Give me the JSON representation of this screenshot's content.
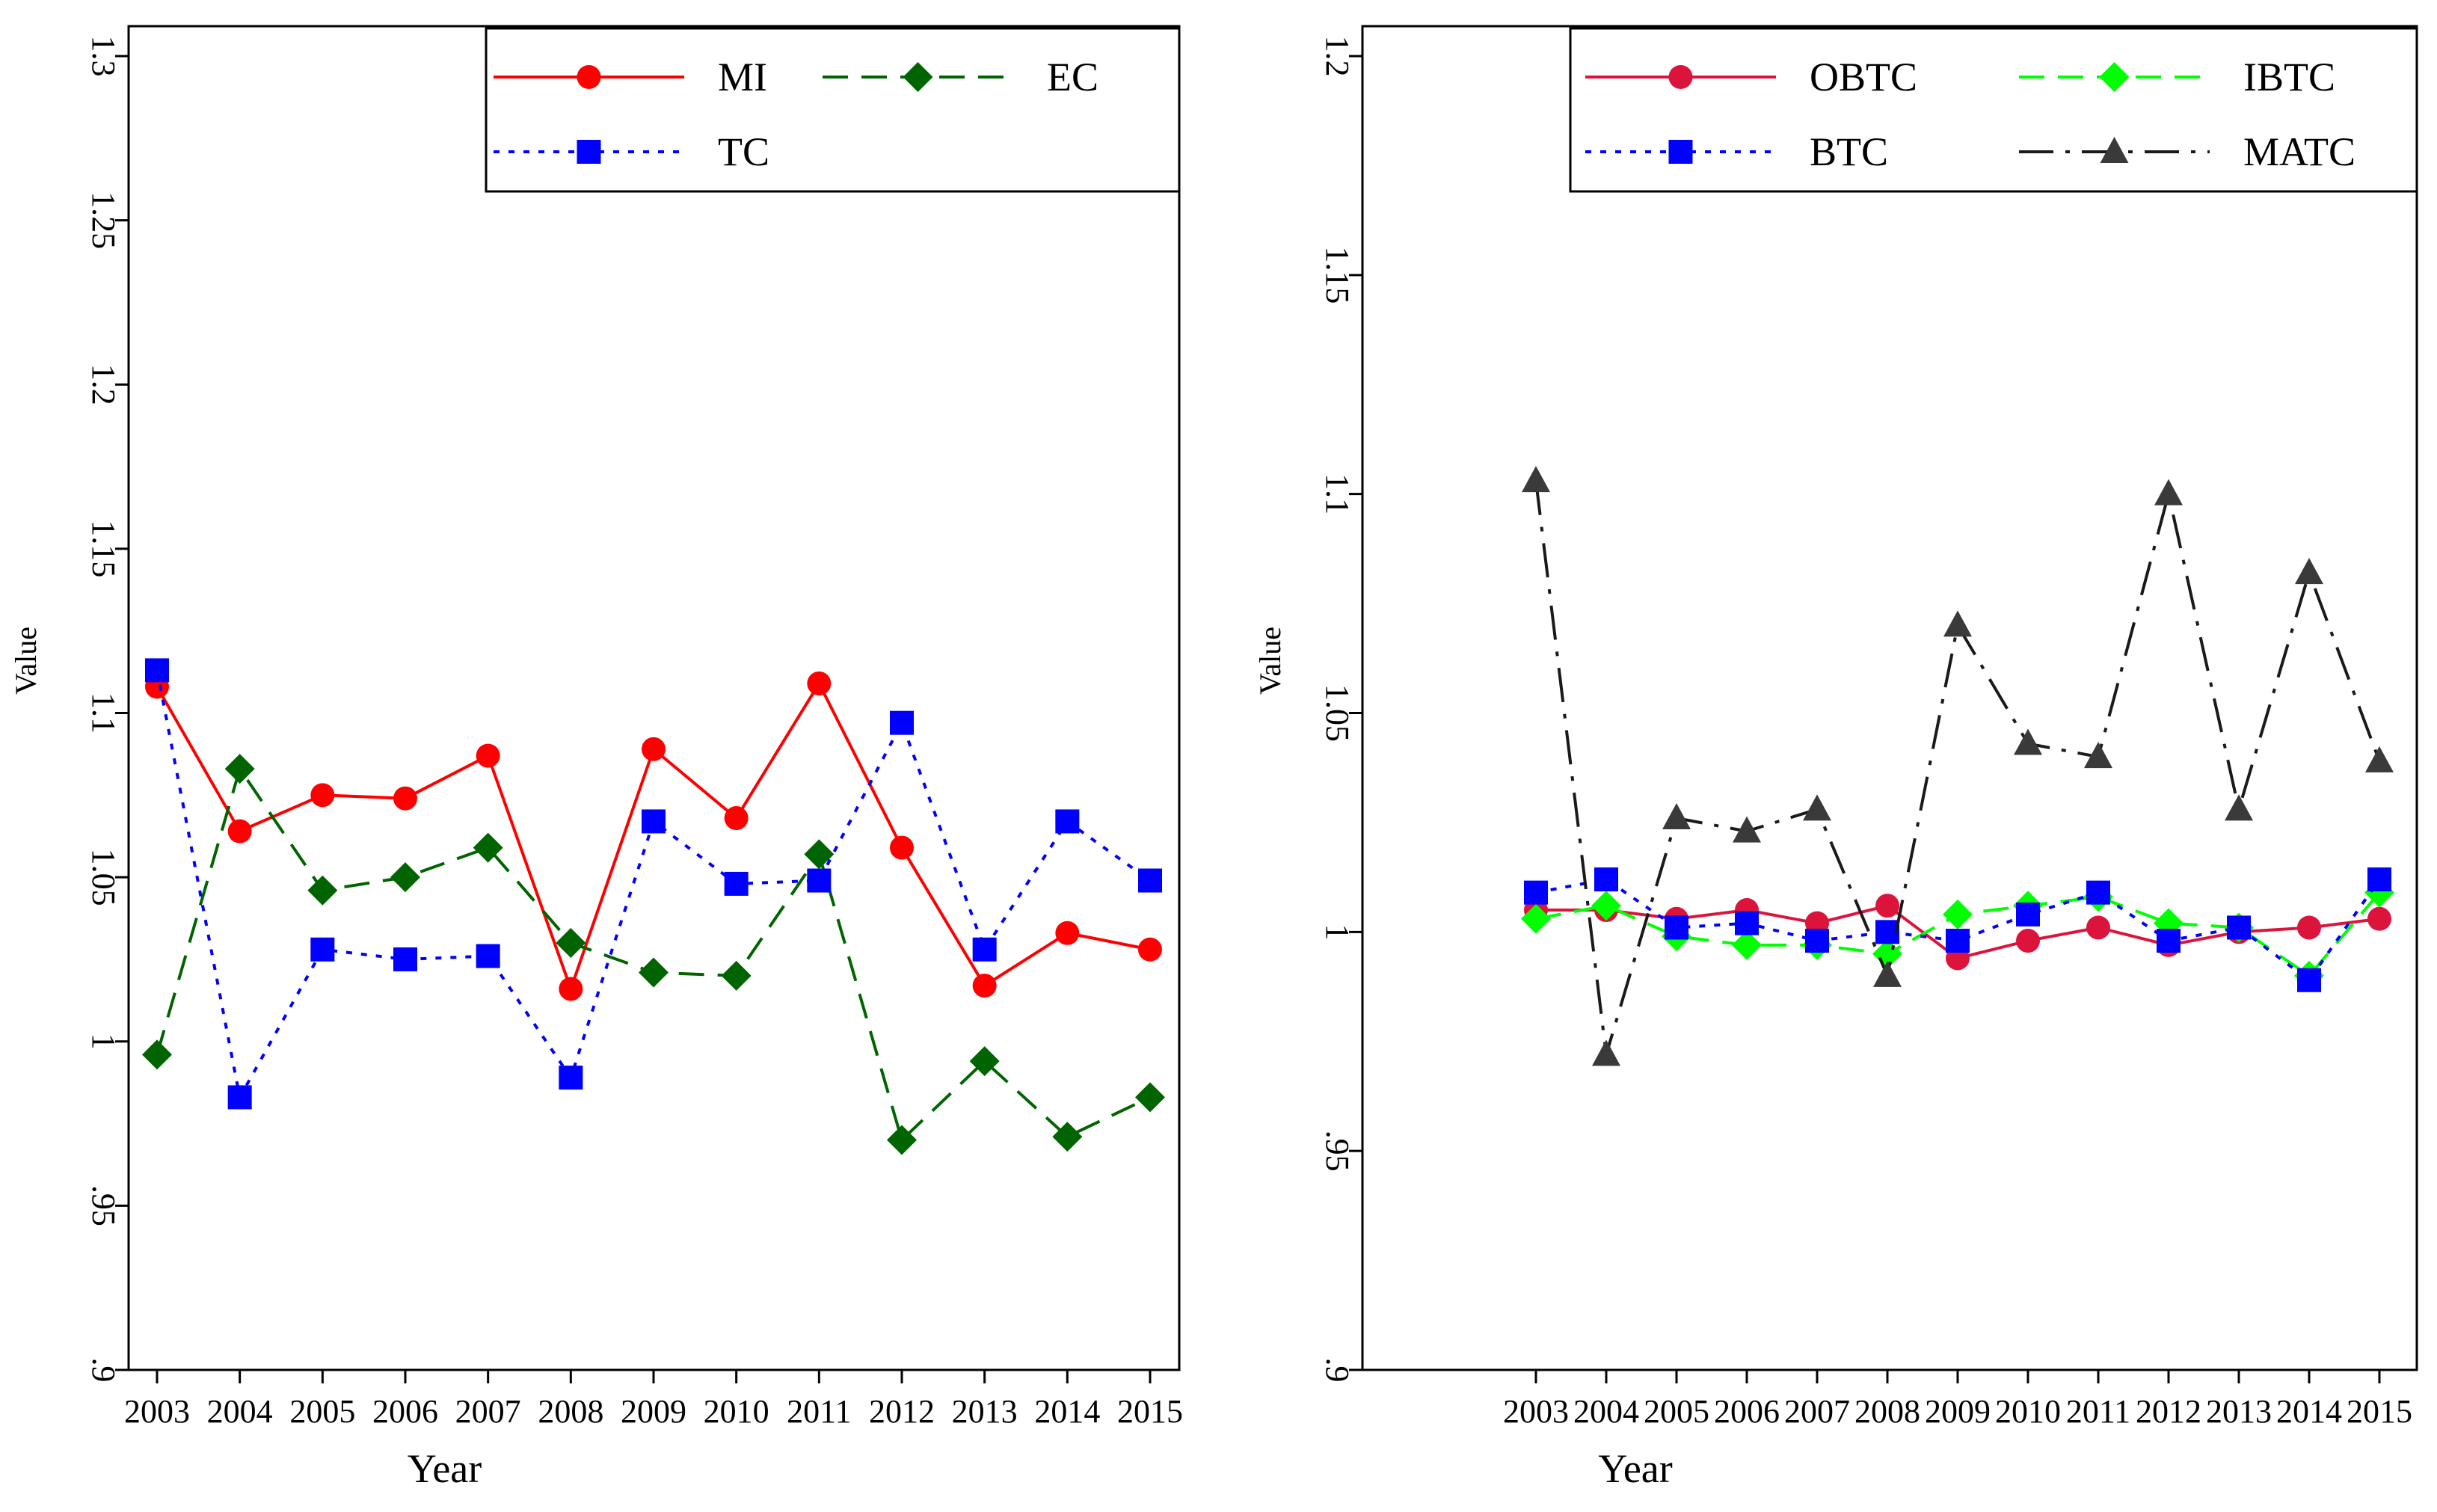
{
  "chart_data": [
    {
      "type": "line",
      "xlabel": "Year",
      "ylabel": "Value",
      "ylim": [
        0.9,
        1.3
      ],
      "yticks": [
        0.9,
        0.95,
        1.0,
        1.05,
        1.1,
        1.15,
        1.2,
        1.25,
        1.3
      ],
      "ytick_labels": [
        ".9",
        ".95",
        "1",
        "1.05",
        "1.1",
        "1.15",
        "1.2",
        "1.25",
        "1.3"
      ],
      "categories": [
        "2003",
        "2004",
        "2005",
        "2006",
        "2007",
        "2008",
        "2009",
        "2010",
        "2011",
        "2012",
        "2013",
        "2014",
        "2015"
      ],
      "grid": false,
      "legend_position": "top-right",
      "series": [
        {
          "name": "MI",
          "color": "#ff0000",
          "marker": "circle",
          "dash": "solid",
          "values": [
            1.108,
            1.064,
            1.075,
            1.074,
            1.087,
            1.016,
            1.089,
            1.068,
            1.109,
            1.059,
            1.017,
            1.033,
            1.028
          ]
        },
        {
          "name": "EC",
          "color": "#006400",
          "marker": "diamond",
          "dash": "dashed",
          "values": [
            0.996,
            1.083,
            1.046,
            1.05,
            1.059,
            1.03,
            1.021,
            1.02,
            1.057,
            0.97,
            0.994,
            0.971,
            0.983
          ]
        },
        {
          "name": "TC",
          "color": "#0000ff",
          "marker": "square",
          "dash": "dotted",
          "values": [
            1.113,
            0.983,
            1.028,
            1.025,
            1.026,
            0.989,
            1.067,
            1.048,
            1.049,
            1.097,
            1.028,
            1.067,
            1.049
          ]
        }
      ]
    },
    {
      "type": "line",
      "xlabel": "Year",
      "ylabel": "Value",
      "ylim": [
        0.9,
        1.2
      ],
      "yticks": [
        0.9,
        0.95,
        1.0,
        1.05,
        1.1,
        1.15,
        1.2
      ],
      "ytick_labels": [
        ".9",
        ".95",
        "1",
        "1.05",
        "1.1",
        "1.15",
        "1.2"
      ],
      "categories": [
        "2003",
        "2004",
        "2005",
        "2006",
        "2007",
        "2008",
        "2009",
        "2010",
        "2011",
        "2012",
        "2013",
        "2014",
        "2015"
      ],
      "grid": false,
      "legend_position": "top-right",
      "series": [
        {
          "name": "OBTC",
          "color": "#dc143c",
          "marker": "circle",
          "dash": "solid",
          "values": [
            1.005,
            1.005,
            1.003,
            1.005,
            1.002,
            1.006,
            0.994,
            0.998,
            1.001,
            0.997,
            1.0,
            1.001,
            1.003
          ]
        },
        {
          "name": "IBTC",
          "color": "#00ff00",
          "marker": "diamond",
          "dash": "dashed",
          "values": [
            1.003,
            1.006,
            0.999,
            0.997,
            0.997,
            0.995,
            1.004,
            1.006,
            1.008,
            1.002,
            1.001,
            0.99,
            1.009
          ]
        },
        {
          "name": "BTC",
          "color": "#0000ff",
          "marker": "square",
          "dash": "dotted",
          "values": [
            1.009,
            1.012,
            1.001,
            1.002,
            0.998,
            1.0,
            0.998,
            1.004,
            1.009,
            0.998,
            1.001,
            0.989,
            1.012
          ]
        },
        {
          "name": "MATC",
          "color": "#1a1a1a",
          "marker": "triangle",
          "dash": "dashdot",
          "values": [
            1.103,
            0.972,
            1.026,
            1.023,
            1.028,
            0.99,
            1.07,
            1.043,
            1.04,
            1.1,
            1.028,
            1.082,
            1.039
          ]
        }
      ]
    }
  ]
}
